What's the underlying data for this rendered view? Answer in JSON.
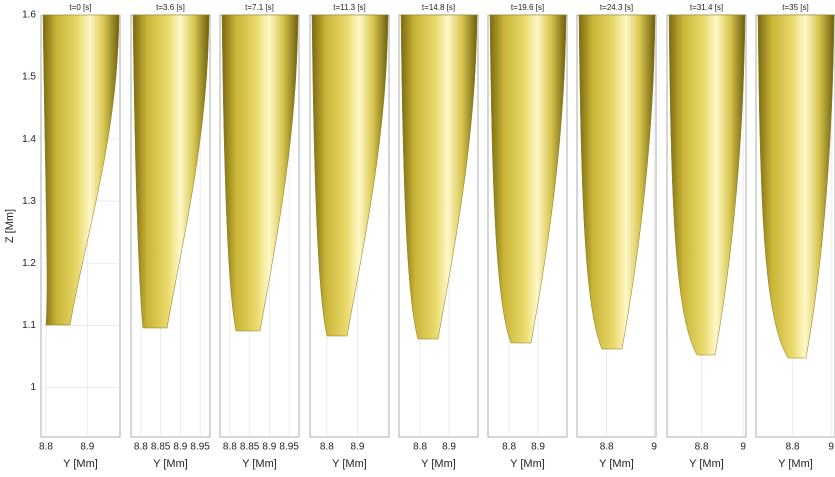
{
  "chart_data": [
    {
      "type": "isosurface",
      "title": "t=0 [s]",
      "xlabel": "Y [Mm]",
      "ylabel": "Z [Mm]",
      "xlim": [
        8.788,
        8.979
      ],
      "xticks": [
        8.8,
        8.9
      ],
      "ylim": [
        0.92,
        1.6
      ],
      "yticks": [
        1,
        1.1,
        1.2,
        1.3,
        1.4,
        1.5,
        1.6
      ]
    },
    {
      "type": "isosurface",
      "title": "t=3.6 [s]",
      "xlabel": "Y [Mm]",
      "xlim": [
        8.775,
        8.975
      ],
      "xticks": [
        8.8,
        8.85,
        8.9,
        8.95
      ],
      "ylim": [
        0.92,
        1.6
      ]
    },
    {
      "type": "isosurface",
      "title": "t=7.1 [s]",
      "xlabel": "Y [Mm]",
      "xlim": [
        8.775,
        8.975
      ],
      "xticks": [
        8.8,
        8.85,
        8.9,
        8.95
      ],
      "ylim": [
        0.92,
        1.6
      ]
    },
    {
      "type": "isosurface",
      "title": "t=11.3 [s]",
      "xlabel": "Y [Mm]",
      "xlim": [
        8.745,
        9.003
      ],
      "xticks": [
        8.8,
        8.9
      ],
      "ylim": [
        0.92,
        1.6
      ]
    },
    {
      "type": "isosurface",
      "title": "t=14.8 [s]",
      "xlabel": "Y [Mm]",
      "xlim": [
        8.727,
        9.0
      ],
      "xticks": [
        8.8,
        8.9
      ],
      "ylim": [
        0.92,
        1.6
      ]
    },
    {
      "type": "isosurface",
      "title": "t=19.6 [s]",
      "xlabel": "Y [Mm]",
      "xlim": [
        8.727,
        9.0
      ],
      "xticks": [
        8.8,
        8.9
      ],
      "ylim": [
        0.92,
        1.6
      ]
    },
    {
      "type": "isosurface",
      "title": "t=24.3 [s]",
      "xlabel": "Y [Mm]",
      "xlim": [
        8.675,
        9.008
      ],
      "xticks": [
        8.8,
        9
      ],
      "ylim": [
        0.92,
        1.6
      ]
    },
    {
      "type": "isosurface",
      "title": "t=31.4 [s]",
      "xlabel": "Y [Mm]",
      "xlim": [
        8.633,
        9.014
      ],
      "xticks": [
        8.8,
        9
      ],
      "ylim": [
        0.92,
        1.6
      ]
    },
    {
      "type": "isosurface",
      "title": "t=35 [s]",
      "xlabel": "Y [Mm]",
      "xlim": [
        8.61,
        9.02
      ],
      "xticks": [
        8.8,
        9
      ],
      "ylim": [
        0.92,
        1.6
      ]
    }
  ]
}
